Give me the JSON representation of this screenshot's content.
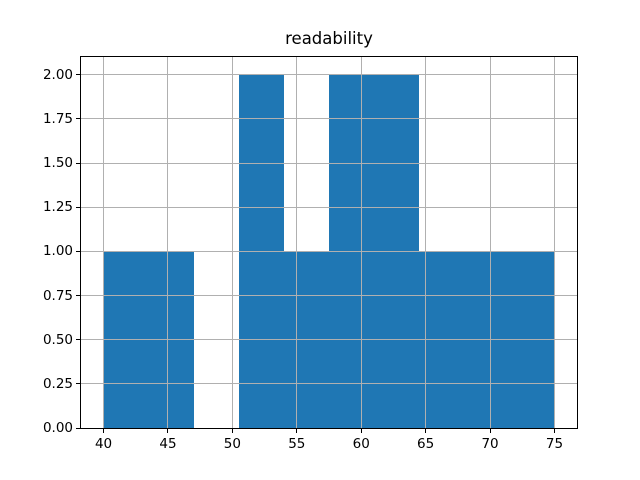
{
  "figure": {
    "background": "#ffffff"
  },
  "chart_data": {
    "type": "histogram",
    "title": "readability",
    "xlabel": "",
    "ylabel": "",
    "bins": {
      "edges": [
        40.0,
        43.5,
        47.0,
        50.5,
        54.0,
        57.5,
        61.0,
        64.5,
        68.0,
        71.5,
        75.0
      ],
      "counts": [
        1,
        1,
        0,
        2,
        1,
        2,
        2,
        1,
        1,
        1
      ]
    },
    "xlim": [
      38.25,
      76.75
    ],
    "ylim": [
      0,
      2.1
    ],
    "x_ticks": [
      40,
      45,
      50,
      55,
      60,
      65,
      70,
      75
    ],
    "x_tick_labels": [
      "40",
      "45",
      "50",
      "55",
      "60",
      "65",
      "70",
      "75"
    ],
    "y_ticks": [
      0.0,
      0.25,
      0.5,
      0.75,
      1.0,
      1.25,
      1.5,
      1.75,
      2.0
    ],
    "y_tick_labels": [
      "0.00",
      "0.25",
      "0.50",
      "0.75",
      "1.00",
      "1.25",
      "1.50",
      "1.75",
      "2.00"
    ],
    "grid": true,
    "legend_position": "none",
    "colors": {
      "bar": "#1f77b4",
      "grid": "#b0b0b0",
      "spine": "#000000",
      "text": "#000000",
      "background": "#ffffff"
    }
  }
}
